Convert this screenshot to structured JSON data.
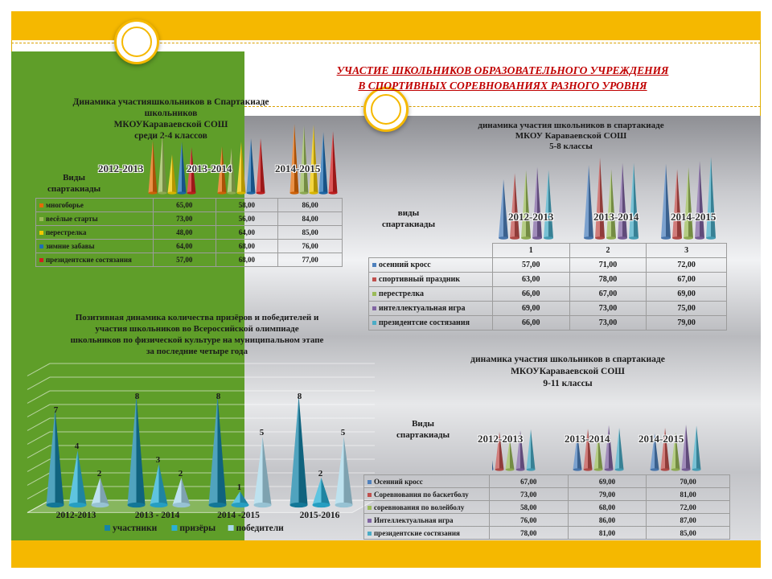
{
  "page_title": [
    "УЧАСТИЕ ШКОЛЬНИКОВ ОБРАЗОВАТЕЛЬНОГО УЧРЕЖДЕНИЯ",
    "В СПОРТИВНЫХ СОРЕВНОВАНИЯХ   РАЗНОГО УРОВНЯ"
  ],
  "colors": {
    "orange": "#e36c09",
    "green": "#9bbb59",
    "yellow": "#f0c800",
    "blue": "#1f6fb4",
    "red": "#d02020",
    "s_blue": "#4f81bd",
    "s_red": "#c0504d",
    "s_green": "#9bbb59",
    "s_purple": "#8064a2",
    "s_aqua": "#4bacc6",
    "p_dark": "#1584a8",
    "p_mid": "#2ab0d6",
    "p_light": "#a8d8ea"
  },
  "chart_data": [
    {
      "type": "bar",
      "title": [
        "Динамика  участияшкольников в Спартакиаде",
        "школьников",
        "МКОУКараваевской СОШ",
        "среди 2-4 классов"
      ],
      "categories_label": [
        "Виды",
        "спартакиады"
      ],
      "categories": [
        "2012-2013",
        "2013-2014",
        "2014-2015"
      ],
      "series": [
        {
          "name": "многоборье",
          "values": [
            "65,00",
            "58,00",
            "86,00"
          ],
          "color": "#e36c09"
        },
        {
          "name": "весёлые старты",
          "values": [
            "73,00",
            "56,00",
            "84,00"
          ],
          "color": "#9bbb59"
        },
        {
          "name": "перестрелка",
          "values": [
            "48,00",
            "64,00",
            "85,00"
          ],
          "color": "#f0c800"
        },
        {
          "name": "зимние забавы",
          "values": [
            "64,00",
            "68,00",
            "76,00"
          ],
          "color": "#1f6fb4"
        },
        {
          "name": "президентские состязания",
          "values": [
            "57,00",
            "68,00",
            "77,00"
          ],
          "color": "#d02020"
        }
      ]
    },
    {
      "type": "bar",
      "title": [
        "динамика участия школьников в спартакиаде",
        "МКОУ Караваевской СОШ",
        "5-8 классы"
      ],
      "categories_label": [
        "виды",
        "спартакиады"
      ],
      "categories": [
        "2012-2013",
        "2013-2014",
        "2014-2015"
      ],
      "column_numbers": [
        "1",
        "2",
        "3"
      ],
      "series": [
        {
          "name": "осенний кросс",
          "values": [
            "57,00",
            "71,00",
            "72,00"
          ],
          "color": "#4f81bd"
        },
        {
          "name": "спортивный праздник",
          "values": [
            "63,00",
            "78,00",
            "67,00"
          ],
          "color": "#c0504d"
        },
        {
          "name": "перестрелка",
          "values": [
            "66,00",
            "67,00",
            "69,00"
          ],
          "color": "#9bbb59"
        },
        {
          "name": "интеллектуальная игра",
          "values": [
            "69,00",
            "73,00",
            "75,00"
          ],
          "color": "#8064a2"
        },
        {
          "name": "президентсие состязания",
          "values": [
            "66,00",
            "73,00",
            "79,00"
          ],
          "color": "#4bacc6"
        }
      ]
    },
    {
      "type": "bar",
      "title": [
        "Позитивная  динамика  количества  призёров  и победителей  и",
        "участия  школьников    во Всероссийской  олимпиаде",
        "школьников  по физической  культуре  на  муниципальном  этапе",
        "за  последние  четыре  года"
      ],
      "categories": [
        "2012-2013",
        "2013 - 2014",
        "2014 -2015",
        "2015-2016"
      ],
      "ylim": [
        0,
        10
      ],
      "series": [
        {
          "name": "участники",
          "values": [
            7,
            8,
            8,
            8
          ],
          "labels": [
            "7",
            "8",
            "8",
            "8"
          ],
          "color": "#1584a8"
        },
        {
          "name": "призёры",
          "values": [
            4,
            3,
            1,
            2
          ],
          "labels": [
            "4",
            "3",
            "1",
            "2"
          ],
          "color": "#2ab0d6"
        },
        {
          "name": "победители",
          "values": [
            2,
            2,
            5,
            5
          ],
          "labels": [
            "2",
            "2",
            "5",
            "5"
          ],
          "color": "#a8d8ea"
        }
      ]
    },
    {
      "type": "bar",
      "title": [
        "динамика участия школьников в спартакиаде",
        "МКОУКараваевской СОШ",
        "9-11 классы"
      ],
      "categories_label": [
        "Виды",
        "спартакиады"
      ],
      "categories": [
        "2012-2013",
        "2013-2014",
        "2014-2015"
      ],
      "series": [
        {
          "name": "Осенний кросс",
          "values": [
            "67,00",
            "69,00",
            "70,00"
          ],
          "color": "#4f81bd"
        },
        {
          "name": "Соревнования по баскетболу",
          "values": [
            "73,00",
            "79,00",
            "81,00"
          ],
          "color": "#c0504d"
        },
        {
          "name": "соревнования по волейболу",
          "values": [
            "58,00",
            "68,00",
            "72,00"
          ],
          "color": "#9bbb59"
        },
        {
          "name": "Интеллектуальная игра",
          "values": [
            "76,00",
            "86,00",
            "87,00"
          ],
          "color": "#8064a2"
        },
        {
          "name": "президентские состязания",
          "values": [
            "78,00",
            "81,00",
            "85,00"
          ],
          "color": "#4bacc6"
        }
      ]
    }
  ]
}
